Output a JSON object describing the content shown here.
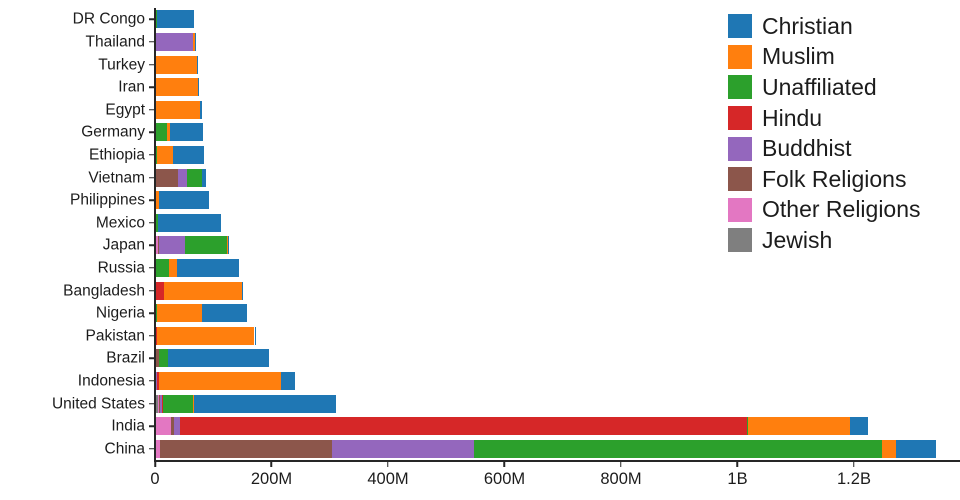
{
  "chart_data": {
    "type": "bar",
    "orientation": "horizontal",
    "stacked": true,
    "title": "",
    "xlabel": "",
    "ylabel": "",
    "unit": "millions of people",
    "xlim": [
      0,
      1382
    ],
    "grid": false,
    "legend_position": "top-right",
    "categories": [
      "DR Congo",
      "Thailand",
      "Turkey",
      "Iran",
      "Egypt",
      "Germany",
      "Ethiopia",
      "Vietnam",
      "Philippines",
      "Mexico",
      "Japan",
      "Russia",
      "Bangladesh",
      "Nigeria",
      "Pakistan",
      "Brazil",
      "Indonesia",
      "United States",
      "India",
      "China"
    ],
    "legend": [
      "Christian",
      "Muslim",
      "Unaffiliated",
      "Hindu",
      "Buddhist",
      "Folk Religions",
      "Other Religions",
      "Jewish"
    ],
    "stack_order": [
      "Jewish",
      "Other Religions",
      "Folk Religions",
      "Buddhist",
      "Hindu",
      "Unaffiliated",
      "Muslim",
      "Christian"
    ],
    "x_ticks": [
      {
        "value": 0,
        "label": "0"
      },
      {
        "value": 200,
        "label": "200M"
      },
      {
        "value": 400,
        "label": "400M"
      },
      {
        "value": 600,
        "label": "600M"
      },
      {
        "value": 800,
        "label": "800M"
      },
      {
        "value": 1000,
        "label": "1B"
      },
      {
        "value": 1200,
        "label": "1.2B"
      }
    ],
    "series": [
      {
        "name": "Christian",
        "color": "#1f77b4",
        "values": [
          63.15,
          0.62,
          0.29,
          0.27,
          4.29,
          56.54,
          52.07,
          7.25,
          86.37,
          107.78,
          2.02,
          105.22,
          0.29,
          78.05,
          2.75,
          173.3,
          23.66,
          243.06,
          31.13,
          68.41
        ]
      },
      {
        "name": "Muslim",
        "color": "#ff7f0e",
        "values": [
          0.97,
          3.8,
          71.33,
          73.57,
          76.99,
          4.76,
          28.68,
          0.16,
          5.13,
          0.11,
          0.25,
          14.3,
          134.43,
          77.3,
          167.41,
          0.04,
          209.12,
          2.77,
          176.19,
          24.69
        ]
      },
      {
        "name": "Unaffiliated",
        "color": "#2ca02c",
        "values": [
          1.19,
          0.21,
          0.87,
          0.07,
          0.16,
          20.35,
          0.52,
          26.27,
          0.09,
          5.26,
          72.12,
          23.18,
          0.15,
          0.66,
          0.02,
          15.41,
          0.24,
          50.98,
          0.87,
          700.68
        ]
      },
      {
        "name": "Hindu",
        "color": "#d62728",
        "values": [
          0,
          0.07,
          0,
          0.01,
          0,
          0.08,
          0,
          0.05,
          0.02,
          0,
          0.03,
          0.04,
          13.52,
          0.02,
          3.33,
          0,
          4.05,
          1.79,
          973.75,
          0.02
        ]
      },
      {
        "name": "Buddhist",
        "color": "#9467bd",
        "values": [
          0,
          64.42,
          0.02,
          0.07,
          0,
          0.25,
          0.01,
          14.38,
          0.04,
          0.01,
          45.82,
          0.17,
          0.74,
          0.02,
          0.02,
          0.25,
          1.72,
          3.57,
          9.25,
          244.13
        ]
      },
      {
        "name": "Folk Religions",
        "color": "#8c564b",
        "values": [
          1.12,
          0.14,
          0.22,
          0.22,
          0.01,
          0.08,
          2.15,
          39.75,
          1.4,
          0.11,
          0.51,
          0.43,
          0.74,
          2.23,
          0.02,
          5.54,
          0.72,
          0.63,
          5.84,
          294.32
        ]
      },
      {
        "name": "Other Religions",
        "color": "#e377c2",
        "values": [
          0.4,
          0.01,
          0.02,
          0.07,
          0.08,
          0.08,
          0.01,
          0.04,
          0.19,
          0.01,
          5.95,
          0.04,
          0.15,
          0.13,
          0.02,
          0.41,
          0.34,
          1.9,
          27.56,
          9.08
        ]
      },
      {
        "name": "Jewish",
        "color": "#7f7f7f",
        "values": [
          0,
          0,
          0.02,
          0.01,
          0,
          0.23,
          0,
          0,
          0,
          0.05,
          0,
          0.29,
          0,
          0,
          0,
          0.11,
          0,
          5.69,
          0.01,
          0
        ]
      }
    ]
  }
}
